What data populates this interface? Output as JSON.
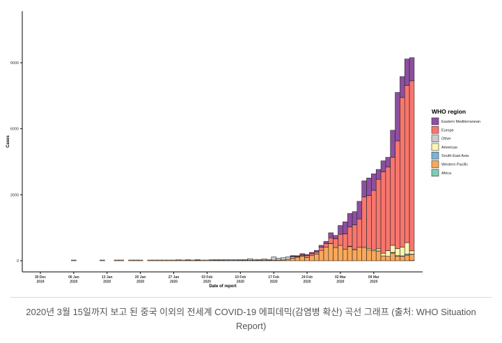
{
  "caption": "2020년 3월 15일까지 보고 된 중국 이외의 전세계 COVID-19 에피데믹(감염병 확산) 곡선 그래프 (출처: WHO Situation Report)",
  "chart_data": {
    "type": "bar",
    "stacked": true,
    "title": "",
    "xlabel": "Date of report",
    "ylabel": "Cases",
    "ylim": [
      0,
      11000
    ],
    "yticks": [
      0,
      3000,
      6000,
      9000
    ],
    "ytick_labels": [
      "0",
      "3000",
      "6000",
      "9000"
    ],
    "xticks": [
      {
        "day": 0,
        "label": [
          "30 Dec",
          "2019"
        ]
      },
      {
        "day": 7,
        "label": [
          "06 Jan",
          "2020"
        ]
      },
      {
        "day": 14,
        "label": [
          "13 Jan",
          "2020"
        ]
      },
      {
        "day": 21,
        "label": [
          "20 Jan",
          "2020"
        ]
      },
      {
        "day": 28,
        "label": [
          "27 Jan",
          "2020"
        ]
      },
      {
        "day": 35,
        "label": [
          "03 Feb",
          "2020"
        ]
      },
      {
        "day": 42,
        "label": [
          "10 Feb",
          "2020"
        ]
      },
      {
        "day": 49,
        "label": [
          "17 Feb",
          "2020"
        ]
      },
      {
        "day": 56,
        "label": [
          "24 Feb",
          "2020"
        ]
      },
      {
        "day": 63,
        "label": [
          "02 Mar",
          "2020"
        ]
      },
      {
        "day": 70,
        "label": [
          "09 Mar",
          "2020"
        ]
      }
    ],
    "grid": false,
    "legend_position": "right",
    "legend_title": "WHO region",
    "series": [
      {
        "name": "Eastern Mediterranean",
        "color": "#8e4fa0"
      },
      {
        "name": "Europe",
        "color": "#f8766d"
      },
      {
        "name": "Other",
        "color": "#cccccc"
      },
      {
        "name": "Americas",
        "color": "#fdf5b5"
      },
      {
        "name": "South-East Asia",
        "color": "#7fb2d5"
      },
      {
        "name": "Western Pacific",
        "color": "#f9a85a"
      },
      {
        "name": "Africa",
        "color": "#7fcdb6"
      }
    ],
    "stack_order": [
      "Africa",
      "Western Pacific",
      "South-East Asia",
      "Americas",
      "Other",
      "Europe",
      "Eastern Mediterranean"
    ],
    "bars": [
      {
        "day": 7,
        "values": {
          "Western Pacific": 5
        }
      },
      {
        "day": 13,
        "values": {
          "Western Pacific": 4
        }
      },
      {
        "day": 16,
        "values": {
          "Western Pacific": 4
        }
      },
      {
        "day": 17,
        "values": {
          "Western Pacific": 4
        }
      },
      {
        "day": 19,
        "values": {
          "Western Pacific": 5
        }
      },
      {
        "day": 20,
        "values": {
          "Western Pacific": 4
        }
      },
      {
        "day": 21,
        "values": {
          "Western Pacific": 4
        }
      },
      {
        "day": 23,
        "values": {
          "Western Pacific": 5
        }
      },
      {
        "day": 24,
        "values": {
          "Western Pacific": 6
        }
      },
      {
        "day": 25,
        "values": {
          "Western Pacific": 8
        }
      },
      {
        "day": 26,
        "values": {
          "Western Pacific": 10
        }
      },
      {
        "day": 27,
        "values": {
          "Western Pacific": 12
        }
      },
      {
        "day": 28,
        "values": {
          "Western Pacific": 14
        }
      },
      {
        "day": 29,
        "values": {
          "Western Pacific": 14,
          "Americas": 2
        }
      },
      {
        "day": 30,
        "values": {
          "Western Pacific": 16
        }
      },
      {
        "day": 31,
        "values": {
          "Western Pacific": 14,
          "Europe": 4
        }
      },
      {
        "day": 32,
        "values": {
          "Western Pacific": 16
        }
      },
      {
        "day": 33,
        "values": {
          "Western Pacific": 18,
          "Europe": 2
        }
      },
      {
        "day": 34,
        "values": {
          "Western Pacific": 12
        }
      },
      {
        "day": 35,
        "values": {
          "Western Pacific": 14
        }
      },
      {
        "day": 36,
        "values": {
          "Western Pacific": 16,
          "Other": 4
        }
      },
      {
        "day": 37,
        "values": {
          "Western Pacific": 20,
          "Other": 8
        }
      },
      {
        "day": 38,
        "values": {
          "Western Pacific": 18,
          "Other": 20
        }
      },
      {
        "day": 39,
        "values": {
          "Western Pacific": 16,
          "Other": 10
        }
      },
      {
        "day": 40,
        "values": {
          "Western Pacific": 14,
          "Other": 30
        }
      },
      {
        "day": 41,
        "values": {
          "Western Pacific": 15,
          "Other": 2
        }
      },
      {
        "day": 42,
        "values": {
          "Western Pacific": 18,
          "Other": 5
        }
      },
      {
        "day": 43,
        "values": {
          "Western Pacific": 20,
          "Other": 5
        }
      },
      {
        "day": 44,
        "values": {
          "Western Pacific": 25,
          "Other": 65
        }
      },
      {
        "day": 45,
        "values": {
          "Western Pacific": 20,
          "Other": 40
        }
      },
      {
        "day": 46,
        "values": {
          "Western Pacific": 22,
          "Other": 8
        }
      },
      {
        "day": 47,
        "values": {
          "Western Pacific": 25,
          "Other": 60
        }
      },
      {
        "day": 48,
        "values": {
          "Western Pacific": 25,
          "Other": 8
        }
      },
      {
        "day": 49,
        "values": {
          "Western Pacific": 30,
          "Other": 140
        }
      },
      {
        "day": 50,
        "values": {
          "Western Pacific": 30,
          "Other": 80
        }
      },
      {
        "day": 51,
        "values": {
          "Western Pacific": 35,
          "Other": 100
        }
      },
      {
        "day": 52,
        "values": {
          "Western Pacific": 60,
          "Other": 115
        }
      },
      {
        "day": 53,
        "values": {
          "Western Pacific": 110,
          "Europe": 20,
          "Eastern Mediterranean": 10,
          "Other": 70
        }
      },
      {
        "day": 54,
        "values": {
          "Western Pacific": 160,
          "Europe": 30,
          "Eastern Mediterranean": 20,
          "Other": 5
        }
      },
      {
        "day": 55,
        "values": {
          "Western Pacific": 210,
          "Europe": 50,
          "Eastern Mediterranean": 40,
          "Other": 20
        }
      },
      {
        "day": 56,
        "values": {
          "Western Pacific": 150,
          "Europe": 80,
          "Eastern Mediterranean": 50,
          "Other": 5
        }
      },
      {
        "day": 57,
        "values": {
          "Western Pacific": 230,
          "Europe": 90,
          "Eastern Mediterranean": 60
        }
      },
      {
        "day": 58,
        "values": {
          "Western Pacific": 300,
          "Europe": 100,
          "Eastern Mediterranean": 70
        }
      },
      {
        "day": 59,
        "values": {
          "Western Pacific": 470,
          "Europe": 150,
          "Eastern Mediterranean": 80
        }
      },
      {
        "day": 60,
        "values": {
          "Western Pacific": 620,
          "Europe": 150,
          "Eastern Mediterranean": 110
        }
      },
      {
        "day": 61,
        "values": {
          "Western Pacific": 780,
          "Europe": 250,
          "Eastern Mediterranean": 230,
          "Americas": 10
        }
      },
      {
        "day": 62,
        "values": {
          "Western Pacific": 600,
          "Europe": 400,
          "Eastern Mediterranean": 150
        }
      },
      {
        "day": 63,
        "values": {
          "Western Pacific": 700,
          "Europe": 500,
          "Eastern Mediterranean": 400
        }
      },
      {
        "day": 64,
        "values": {
          "Western Pacific": 520,
          "Europe": 700,
          "Eastern Mediterranean": 550
        }
      },
      {
        "day": 65,
        "values": {
          "Western Pacific": 640,
          "Europe": 880,
          "Eastern Mediterranean": 610,
          "Americas": 20
        }
      },
      {
        "day": 66,
        "values": {
          "Western Pacific": 500,
          "Europe": 1100,
          "Eastern Mediterranean": 600,
          "Americas": 30
        }
      },
      {
        "day": 67,
        "values": {
          "Western Pacific": 610,
          "Europe": 1290,
          "Eastern Mediterranean": 800
        }
      },
      {
        "day": 68,
        "values": {
          "Western Pacific": 580,
          "Europe": 2270,
          "Eastern Mediterranean": 730,
          "Americas": 50
        }
      },
      {
        "day": 69,
        "values": {
          "Western Pacific": 500,
          "Europe": 2400,
          "Eastern Mediterranean": 800,
          "Americas": 60
        }
      },
      {
        "day": 70,
        "values": {
          "Western Pacific": 450,
          "Europe": 2700,
          "Eastern Mediterranean": 750,
          "Americas": 50
        }
      },
      {
        "day": 71,
        "values": {
          "Western Pacific": 440,
          "Europe": 3160,
          "Eastern Mediterranean": 450,
          "Americas": 90,
          "South-East Asia": 10
        }
      },
      {
        "day": 72,
        "values": {
          "Western Pacific": 220,
          "Europe": 3700,
          "Eastern Mediterranean": 500,
          "Americas": 120
        }
      },
      {
        "day": 73,
        "values": {
          "Western Pacific": 200,
          "Europe": 3800,
          "Eastern Mediterranean": 440,
          "Americas": 260
        }
      },
      {
        "day": 74,
        "values": {
          "Western Pacific": 350,
          "Europe": 4000,
          "Eastern Mediterranean": 1230,
          "Americas": 320,
          "South-East Asia": 30
        }
      },
      {
        "day": 75,
        "values": {
          "Western Pacific": 200,
          "Europe": 4900,
          "Eastern Mediterranean": 2200,
          "Americas": 320,
          "South-East Asia": 30
        }
      },
      {
        "day": 76,
        "values": {
          "Western Pacific": 200,
          "Europe": 6800,
          "Eastern Mediterranean": 950,
          "Americas": 400,
          "South-East Asia": 20
        }
      },
      {
        "day": 77,
        "values": {
          "Western Pacific": 250,
          "Europe": 7150,
          "Eastern Mediterranean": 1200,
          "Americas": 520,
          "South-East Asia": 50
        }
      },
      {
        "day": 78,
        "values": {
          "Western Pacific": 280,
          "Europe": 7730,
          "Eastern Mediterranean": 1050,
          "Americas": 150,
          "Africa": 10,
          "South-East Asia": 10
        }
      }
    ]
  }
}
